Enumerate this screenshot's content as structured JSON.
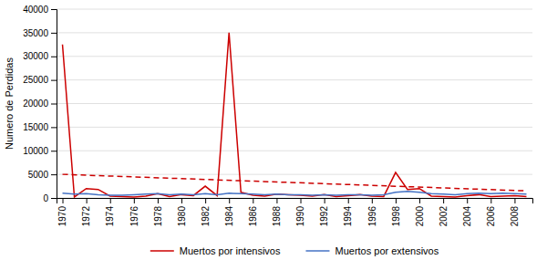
{
  "chart_data": {
    "type": "line",
    "ylabel": "Numero de Perdidas",
    "x": [
      1970,
      1971,
      1972,
      1973,
      1974,
      1975,
      1976,
      1977,
      1978,
      1979,
      1980,
      1981,
      1982,
      1983,
      1984,
      1985,
      1986,
      1987,
      1988,
      1989,
      1990,
      1991,
      1992,
      1993,
      1994,
      1995,
      1996,
      1997,
      1998,
      1999,
      2000,
      2001,
      2002,
      2003,
      2004,
      2005,
      2006,
      2007,
      2008,
      2009
    ],
    "series": [
      {
        "name": "Muertos por intensivos",
        "color": "#cc0000",
        "values": [
          32500,
          200,
          2000,
          1800,
          400,
          300,
          200,
          400,
          900,
          300,
          700,
          500,
          2500,
          500,
          35000,
          1200,
          600,
          400,
          800,
          700,
          600,
          400,
          700,
          300,
          500,
          700,
          400,
          300,
          5400,
          1800,
          2000,
          400,
          300,
          200,
          500,
          700,
          300,
          400,
          500,
          300
        ]
      },
      {
        "name": "Muertos por extensivos",
        "color": "#4472c4",
        "values": [
          1000,
          800,
          900,
          700,
          600,
          600,
          700,
          800,
          900,
          700,
          800,
          700,
          900,
          700,
          1000,
          900,
          800,
          700,
          800,
          700,
          700,
          600,
          700,
          600,
          700,
          700,
          600,
          700,
          1200,
          1400,
          1200,
          900,
          800,
          700,
          900,
          1000,
          900,
          1000,
          900,
          800
        ]
      },
      {
        "x": [
          1970,
          2009
        ],
        "values": [
          5000,
          1500
        ],
        "color": "#cc0000",
        "line_style": "dashed"
      }
    ],
    "xlim": [
      1969.5,
      2009.5
    ],
    "xticks": [
      1970,
      1972,
      1974,
      1976,
      1978,
      1980,
      1982,
      1984,
      1986,
      1988,
      1990,
      1992,
      1994,
      1996,
      1998,
      2000,
      2002,
      2004,
      2006,
      2008
    ],
    "ylim": [
      0,
      40000
    ],
    "yticks": [
      0,
      5000,
      10000,
      15000,
      20000,
      25000,
      30000,
      35000,
      40000
    ],
    "grid": true,
    "legend": "bottom"
  }
}
